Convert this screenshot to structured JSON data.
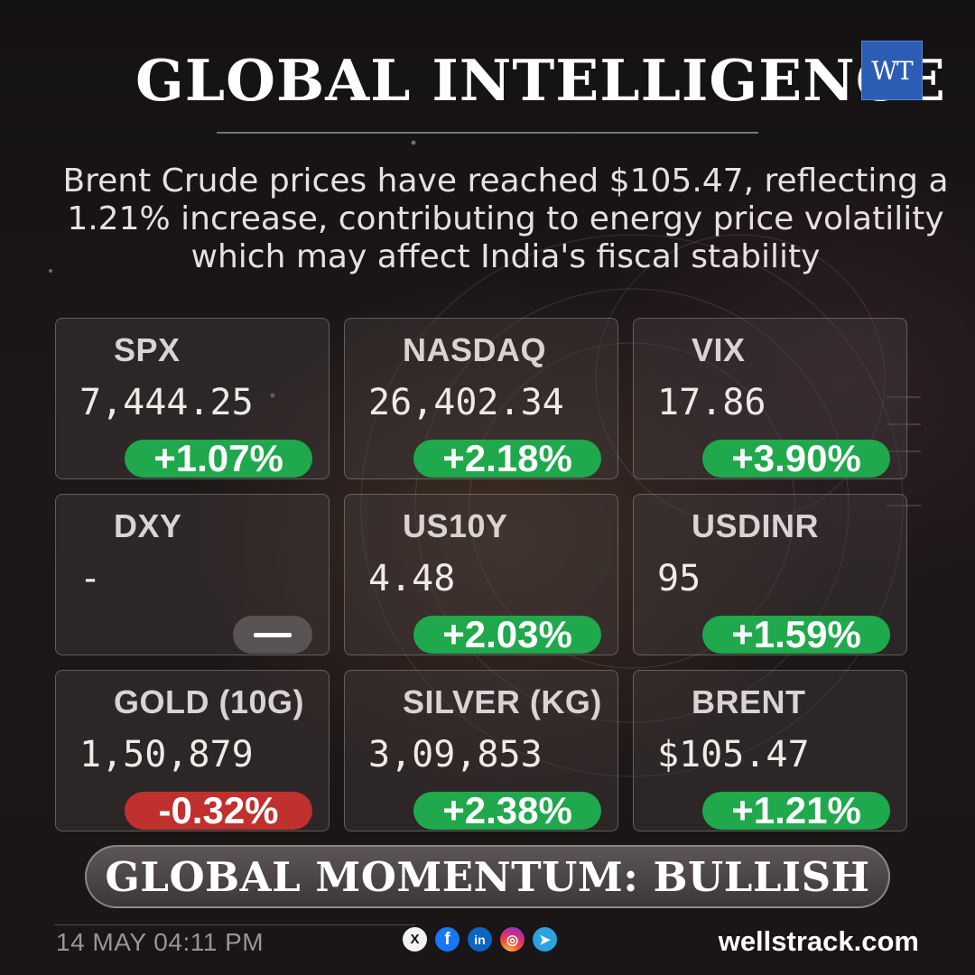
{
  "header": {
    "title": "GLOBAL INTELLIGENCE",
    "logo_text": "WT"
  },
  "headline": "Brent Crude prices have reached $105.47, reflecting a 1.21% increase, contributing to energy price volatility which may affect India's fiscal stability",
  "cards": [
    {
      "name": "SPX",
      "value": "7,444.25",
      "change": "+1.07%",
      "direction": "up"
    },
    {
      "name": "NASDAQ",
      "value": "26,402.34",
      "change": "+2.18%",
      "direction": "up"
    },
    {
      "name": "VIX",
      "value": "17.86",
      "change": "+3.90%",
      "direction": "up"
    },
    {
      "name": "DXY",
      "value": "-",
      "change": "",
      "direction": "flat"
    },
    {
      "name": "US10Y",
      "value": "4.48",
      "change": "+2.03%",
      "direction": "up"
    },
    {
      "name": "USDINR",
      "value": "95",
      "change": "+1.59%",
      "direction": "up"
    },
    {
      "name": "GOLD (10G)",
      "value": "1,50,879",
      "change": "-0.32%",
      "direction": "down"
    },
    {
      "name": "SILVER (KG)",
      "value": "3,09,853",
      "change": "+2.38%",
      "direction": "up"
    },
    {
      "name": "BRENT",
      "value": "$105.47",
      "change": "+1.21%",
      "direction": "up"
    }
  ],
  "momentum": "GLOBAL MOMENTUM: BULLISH",
  "footer": {
    "timestamp": "14 MAY 04:11 PM",
    "site": "wellstrack.com",
    "social": [
      {
        "icon": "x-icon",
        "glyph": "X"
      },
      {
        "icon": "facebook-icon",
        "glyph": "f"
      },
      {
        "icon": "linkedin-icon",
        "glyph": "in"
      },
      {
        "icon": "instagram-icon",
        "glyph": "◎"
      },
      {
        "icon": "telegram-icon",
        "glyph": "➤"
      }
    ]
  },
  "colors": {
    "positive": "#1fa84c",
    "negative": "#c0302e",
    "neutral": "#5a5353",
    "logo_blue": "#2b5db4"
  }
}
